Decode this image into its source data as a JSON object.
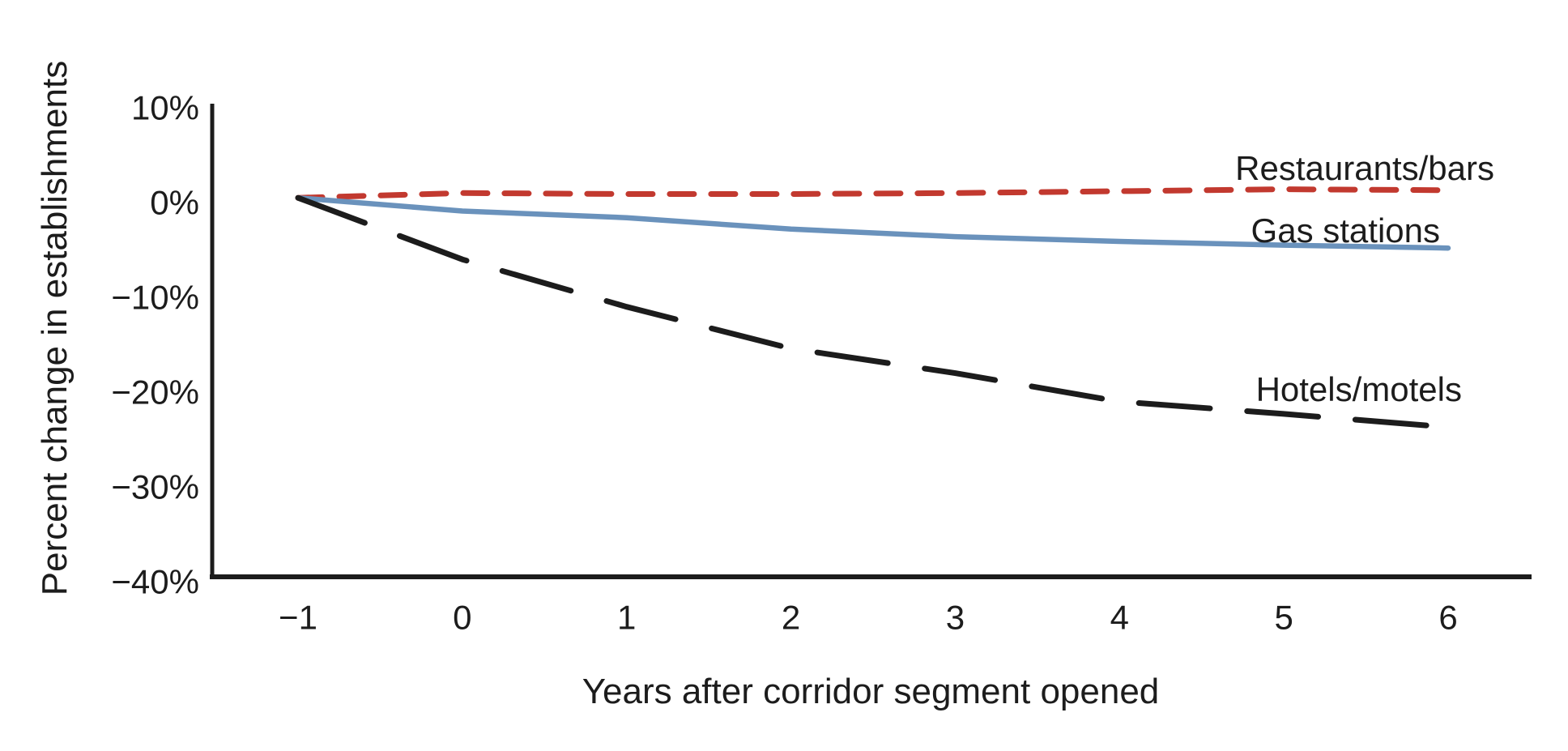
{
  "figure": {
    "background": "#ffffff"
  },
  "chart_data": {
    "type": "line",
    "title": "",
    "xlabel": "Years after corridor segment opened",
    "ylabel": "Percent change in establishments",
    "x": [
      -1,
      0,
      1,
      2,
      3,
      4,
      5,
      6
    ],
    "xticks": [
      -1,
      0,
      1,
      2,
      3,
      4,
      5,
      6
    ],
    "xtick_labels": [
      "−1",
      "0",
      "1",
      "2",
      "3",
      "4",
      "5",
      "6"
    ],
    "yticks": [
      10,
      0,
      -10,
      -20,
      -30,
      -40
    ],
    "ytick_labels": [
      "10%",
      "0%",
      "−10%",
      "−20%",
      "−30%",
      "−40%"
    ],
    "ylim": [
      -40,
      10.5
    ],
    "xlim": [
      -1.55,
      6.5
    ],
    "grid": false,
    "legend_position": "inline-right-of-plot",
    "series": [
      {
        "name": "Restaurants/bars",
        "slug": "restaurants-bars",
        "color": "#c2392f",
        "line_style": "dashed-short",
        "values": [
          0.5,
          1.0,
          0.9,
          0.9,
          1.0,
          1.2,
          1.4,
          1.3
        ]
      },
      {
        "name": "Gas stations",
        "slug": "gas-stations",
        "color": "#6a92bc",
        "line_style": "solid",
        "values": [
          0.5,
          -0.9,
          -1.6,
          -2.8,
          -3.6,
          -4.1,
          -4.5,
          -4.8
        ]
      },
      {
        "name": "Hotels/motels",
        "slug": "hotels-motels",
        "color": "#1c1c1c",
        "line_style": "dashed-long",
        "values": [
          0.5,
          -6.0,
          -11.0,
          -15.4,
          -18.0,
          -21.0,
          -22.3,
          -23.7
        ]
      }
    ]
  }
}
